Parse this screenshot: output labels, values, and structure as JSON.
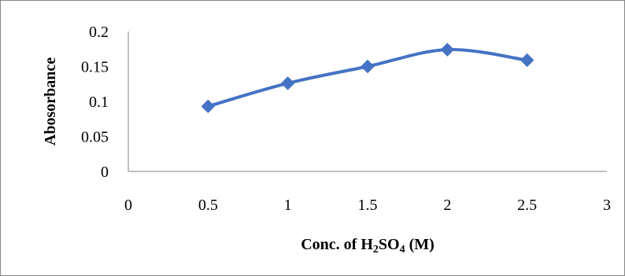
{
  "chart_data": {
    "type": "line",
    "title": "",
    "xlabel": "Conc. of H2SO4 (M)",
    "xlabel_parts": {
      "pre": "Conc. of H",
      "sub": "2",
      "mid": "SO",
      "sub2": "4",
      "post": " (M)"
    },
    "ylabel": "Abosorbance",
    "xlim": [
      0,
      3
    ],
    "ylim": [
      0,
      0.2
    ],
    "x_ticks": [
      0,
      0.5,
      1,
      1.5,
      2,
      2.5,
      3
    ],
    "y_ticks": [
      0,
      0.05,
      0.1,
      0.15,
      0.2
    ],
    "x_tick_labels": [
      "0",
      "0.5",
      "1",
      "1.5",
      "2",
      "2.5",
      "3"
    ],
    "y_tick_labels": [
      "0",
      "0.05",
      "0.1",
      "0.15",
      "0.2"
    ],
    "grid": false,
    "legend": "none",
    "series": [
      {
        "x": [
          0.5,
          1,
          1.5,
          2,
          2.5
        ],
        "y": [
          0.093,
          0.126,
          0.15,
          0.174,
          0.159
        ],
        "color": "#4472C4",
        "marker": "diamond",
        "smooth": true
      }
    ],
    "colors": {
      "series": "#4472C4",
      "axis": "#868686",
      "frame": "#868686"
    }
  }
}
